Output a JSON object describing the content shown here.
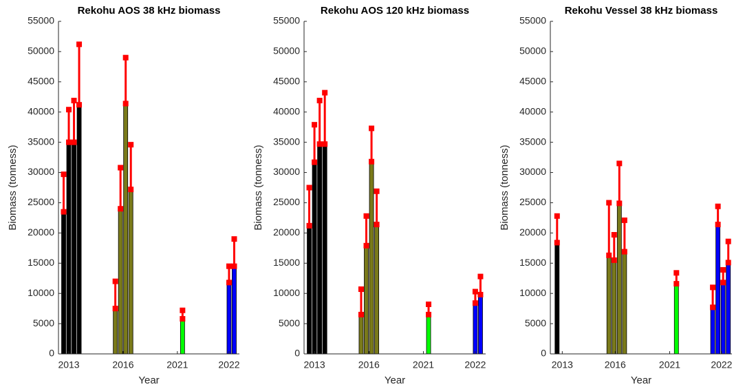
{
  "chart_data": [
    {
      "type": "bar",
      "title": "Rekohu AOS 38 kHz biomass",
      "xlabel": "Year",
      "ylabel": "Biomass (tonness)",
      "xlim": [
        0,
        35
      ],
      "ylim": [
        0,
        55000
      ],
      "xticks": [
        {
          "value": 2,
          "label": "2013"
        },
        {
          "value": 12.5,
          "label": "2016"
        },
        {
          "value": 23,
          "label": "2021"
        },
        {
          "value": 33,
          "label": "2022"
        }
      ],
      "yticks": [
        0,
        5000,
        10000,
        15000,
        20000,
        25000,
        30000,
        35000,
        40000,
        45000,
        50000,
        55000
      ],
      "error_color": "#ff0000",
      "series": [
        {
          "color": "#000000",
          "x": [
            1,
            2,
            3,
            4
          ],
          "values": [
            23500,
            35000,
            35000,
            41200
          ],
          "upper": [
            29700,
            40400,
            41900,
            51200
          ]
        },
        {
          "color": "#7a7a1a",
          "x": [
            11,
            12,
            13,
            14
          ],
          "values": [
            7500,
            24000,
            41400,
            27200
          ],
          "upper": [
            12000,
            30800,
            49000,
            34600
          ]
        },
        {
          "color": "#00ff00",
          "x": [
            24
          ],
          "values": [
            5800
          ],
          "upper": [
            7200
          ]
        },
        {
          "color": "#0000ff",
          "x": [
            33,
            34
          ],
          "values": [
            11800,
            14500
          ],
          "upper": [
            14500,
            19000
          ]
        }
      ]
    },
    {
      "type": "bar",
      "title": "Rekohu AOS 120 kHz biomass",
      "xlabel": "Year",
      "ylabel": "Biomass (tonness)",
      "xlim": [
        0,
        35
      ],
      "ylim": [
        0,
        55000
      ],
      "xticks": [
        {
          "value": 2,
          "label": "2013"
        },
        {
          "value": 12.5,
          "label": "2016"
        },
        {
          "value": 23,
          "label": "2021"
        },
        {
          "value": 33,
          "label": "2022"
        }
      ],
      "yticks": [
        0,
        5000,
        10000,
        15000,
        20000,
        25000,
        30000,
        35000,
        40000,
        45000,
        50000,
        55000
      ],
      "error_color": "#ff0000",
      "series": [
        {
          "color": "#000000",
          "x": [
            1,
            2,
            3,
            4
          ],
          "values": [
            21200,
            31700,
            34700,
            34700
          ],
          "upper": [
            27500,
            37900,
            41900,
            43200
          ]
        },
        {
          "color": "#7a7a1a",
          "x": [
            11,
            12,
            13,
            14
          ],
          "values": [
            6500,
            17900,
            31800,
            21400
          ],
          "upper": [
            10700,
            22800,
            37300,
            26900
          ]
        },
        {
          "color": "#00ff00",
          "x": [
            24
          ],
          "values": [
            6500
          ],
          "upper": [
            8200
          ]
        },
        {
          "color": "#0000ff",
          "x": [
            33,
            34
          ],
          "values": [
            8400,
            9800
          ],
          "upper": [
            10300,
            12800
          ]
        }
      ]
    },
    {
      "type": "bar",
      "title": "Rekohu Vessel 38 kHz biomass",
      "xlabel": "Year",
      "ylabel": "Biomass (tonness)",
      "xlim": [
        0,
        35
      ],
      "ylim": [
        0,
        55000
      ],
      "xticks": [
        {
          "value": 2.3,
          "label": "2013"
        },
        {
          "value": 12.5,
          "label": "2016"
        },
        {
          "value": 23,
          "label": "2021"
        },
        {
          "value": 33,
          "label": "2022"
        }
      ],
      "yticks": [
        0,
        5000,
        10000,
        15000,
        20000,
        25000,
        30000,
        35000,
        40000,
        45000,
        50000,
        55000
      ],
      "error_color": "#ff0000",
      "series": [
        {
          "color": "#000000",
          "x": [
            1.3
          ],
          "values": [
            18400
          ],
          "upper": [
            22800
          ]
        },
        {
          "color": "#7a7a1a",
          "x": [
            11.3,
            12.3,
            13.3,
            14.3
          ],
          "values": [
            16300,
            15500,
            24900,
            16900
          ],
          "upper": [
            25000,
            19700,
            31500,
            22100
          ]
        },
        {
          "color": "#00ff00",
          "x": [
            24.3
          ],
          "values": [
            11600
          ],
          "upper": [
            13400
          ]
        },
        {
          "color": "#0000ff",
          "x": [
            31.3,
            32.3,
            33.3,
            34.3
          ],
          "values": [
            7700,
            21400,
            11800,
            15100
          ],
          "upper": [
            11000,
            24400,
            13900,
            18600
          ]
        }
      ]
    }
  ]
}
